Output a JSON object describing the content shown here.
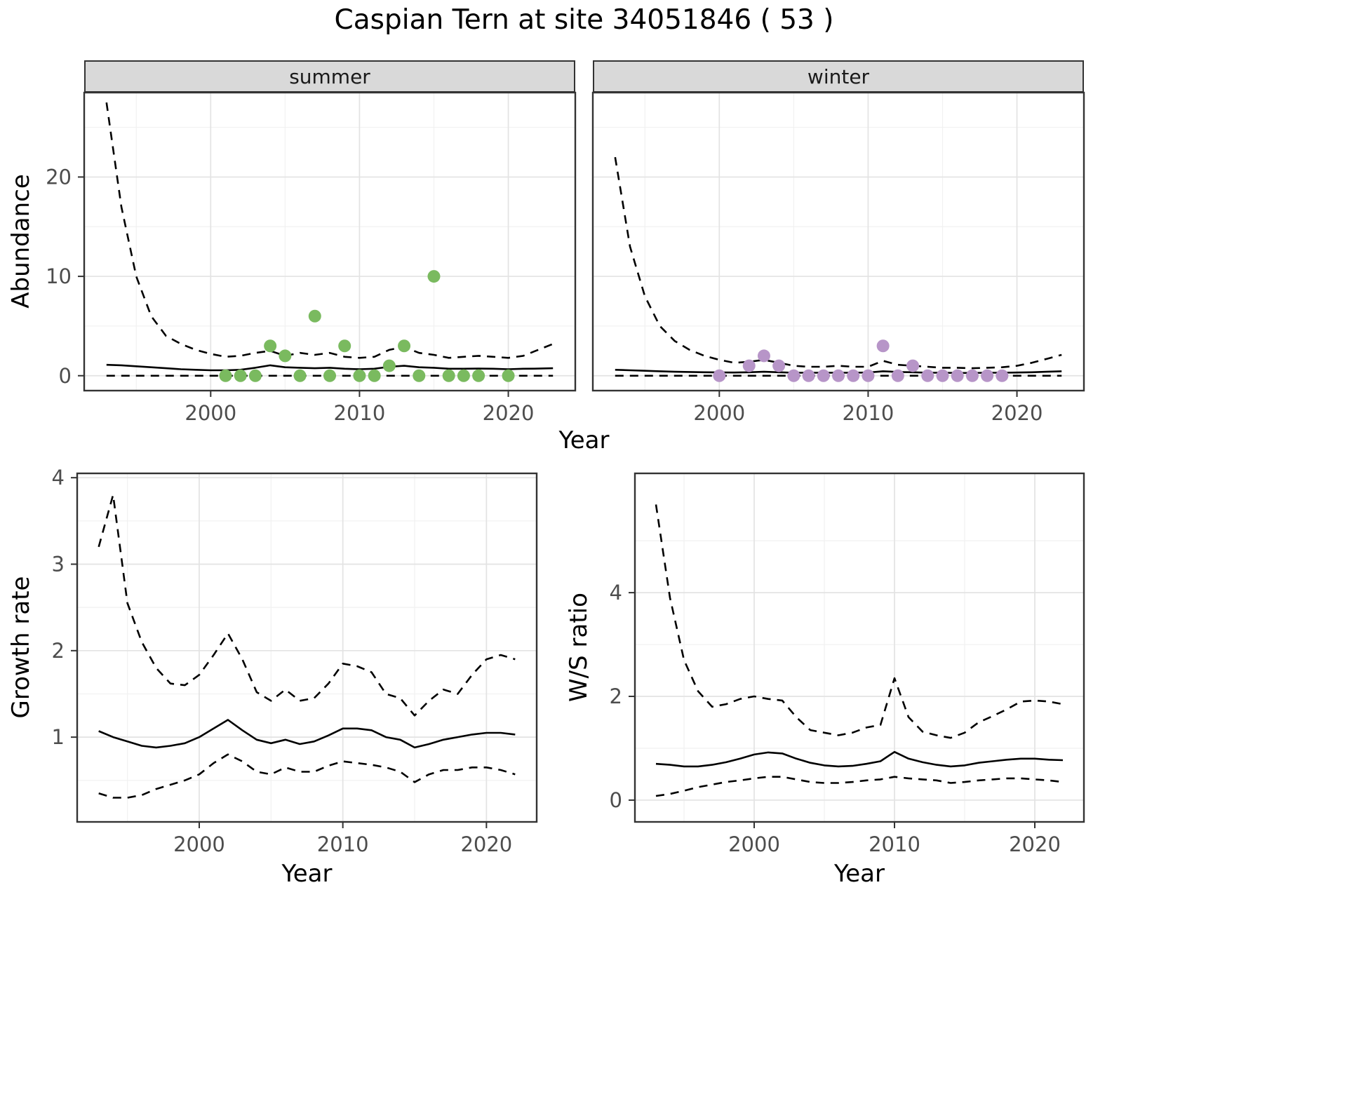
{
  "title": "Caspian Tern at site 34051846 ( 53 )",
  "chart_data": [
    {
      "id": "abundance-summer",
      "type": "line",
      "facet_label": "summer",
      "xlabel": "Year",
      "ylabel": "Abundance",
      "xlim": [
        1991.5,
        2024.5
      ],
      "ylim": [
        -1.5,
        28.5
      ],
      "xticks": [
        2000,
        2010,
        2020
      ],
      "yticks": [
        0,
        10,
        20
      ],
      "x": [
        1993,
        1994,
        1995,
        1996,
        1997,
        1998,
        1999,
        2000,
        2001,
        2002,
        2003,
        2004,
        2005,
        2006,
        2007,
        2008,
        2009,
        2010,
        2011,
        2012,
        2013,
        2014,
        2015,
        2016,
        2017,
        2018,
        2019,
        2020,
        2021,
        2022,
        2023
      ],
      "series": [
        {
          "name": "upper_95ci",
          "style": "dashed",
          "values": [
            27.5,
            17,
            10,
            6,
            4,
            3.2,
            2.6,
            2.2,
            1.9,
            2.0,
            2.3,
            2.5,
            2.0,
            2.3,
            2.1,
            2.3,
            1.9,
            1.8,
            1.9,
            2.6,
            2.9,
            2.3,
            2.1,
            1.8,
            1.9,
            2.0,
            1.9,
            1.8,
            2.0,
            2.6,
            3.2
          ]
        },
        {
          "name": "mean",
          "style": "solid",
          "values": [
            1.1,
            1.05,
            0.95,
            0.85,
            0.75,
            0.65,
            0.6,
            0.55,
            0.55,
            0.6,
            0.8,
            1.05,
            0.85,
            0.8,
            0.75,
            0.8,
            0.7,
            0.65,
            0.7,
            0.9,
            1.0,
            0.85,
            0.8,
            0.7,
            0.7,
            0.72,
            0.7,
            0.65,
            0.7,
            0.72,
            0.75
          ]
        },
        {
          "name": "lower_95ci",
          "style": "dashed",
          "values": [
            0,
            0,
            0,
            0,
            0,
            0,
            0,
            0,
            0,
            0,
            0,
            0,
            0,
            0,
            0,
            0,
            0,
            0,
            0,
            0,
            0,
            0,
            0,
            0,
            0,
            0,
            0,
            0,
            0,
            0,
            0
          ]
        }
      ],
      "points": {
        "name": "observed-counts-summer",
        "color": "#7aba5f",
        "x": [
          2001,
          2002,
          2003,
          2004,
          2005,
          2006,
          2007,
          2008,
          2009,
          2010,
          2011,
          2012,
          2013,
          2014,
          2015,
          2016,
          2017,
          2018,
          2020
        ],
        "y": [
          0,
          0,
          0,
          3,
          2,
          0,
          6,
          0,
          3,
          0,
          0,
          1,
          3,
          0,
          10,
          0,
          0,
          0,
          0
        ]
      }
    },
    {
      "id": "abundance-winter",
      "type": "line",
      "facet_label": "winter",
      "xlabel": "Year",
      "ylabel": "Abundance",
      "xlim": [
        1991.5,
        2024.5
      ],
      "ylim": [
        -1.5,
        28.5
      ],
      "xticks": [
        2000,
        2010,
        2020
      ],
      "yticks": [
        0,
        10,
        20
      ],
      "x": [
        1993,
        1994,
        1995,
        1996,
        1997,
        1998,
        1999,
        2000,
        2001,
        2002,
        2003,
        2004,
        2005,
        2006,
        2007,
        2008,
        2009,
        2010,
        2011,
        2012,
        2013,
        2014,
        2015,
        2016,
        2017,
        2018,
        2019,
        2020,
        2021,
        2022,
        2023
      ],
      "series": [
        {
          "name": "upper_95ci",
          "style": "dashed",
          "values": [
            22,
            13,
            8,
            5,
            3.5,
            2.6,
            2.0,
            1.6,
            1.3,
            1.4,
            1.6,
            1.3,
            1.0,
            0.9,
            0.9,
            1.0,
            0.9,
            0.9,
            1.5,
            1.1,
            1.0,
            0.9,
            0.8,
            0.8,
            0.75,
            0.8,
            0.85,
            1.0,
            1.3,
            1.7,
            2.1
          ]
        },
        {
          "name": "mean",
          "style": "solid",
          "values": [
            0.6,
            0.55,
            0.5,
            0.45,
            0.4,
            0.38,
            0.35,
            0.33,
            0.32,
            0.35,
            0.4,
            0.35,
            0.3,
            0.3,
            0.3,
            0.3,
            0.3,
            0.32,
            0.45,
            0.38,
            0.35,
            0.3,
            0.3,
            0.28,
            0.28,
            0.3,
            0.3,
            0.32,
            0.35,
            0.4,
            0.45
          ]
        },
        {
          "name": "lower_95ci",
          "style": "dashed",
          "values": [
            0,
            0,
            0,
            0,
            0,
            0,
            0,
            0,
            0,
            0,
            0,
            0,
            0,
            0,
            0,
            0,
            0,
            0,
            0,
            0,
            0,
            0,
            0,
            0,
            0,
            0,
            0,
            0,
            0,
            0,
            0
          ]
        }
      ],
      "points": {
        "name": "observed-counts-winter",
        "color": "#b795c8",
        "x": [
          2000,
          2002,
          2003,
          2004,
          2005,
          2006,
          2007,
          2008,
          2009,
          2010,
          2011,
          2012,
          2013,
          2014,
          2015,
          2016,
          2017,
          2018,
          2019
        ],
        "y": [
          0,
          1,
          2,
          1,
          0,
          0,
          0,
          0,
          0,
          0,
          3,
          0,
          1,
          0,
          0,
          0,
          0,
          0,
          0
        ]
      }
    },
    {
      "id": "growth-rate",
      "type": "line",
      "facet_label": "",
      "xlabel": "Year",
      "ylabel": "Growth rate",
      "xlim": [
        1991.5,
        2023.5
      ],
      "ylim": [
        0.02,
        4.05
      ],
      "xticks": [
        2000,
        2010,
        2020
      ],
      "yticks": [
        1,
        2,
        3,
        4
      ],
      "x": [
        1993,
        1994,
        1995,
        1996,
        1997,
        1998,
        1999,
        2000,
        2001,
        2002,
        2003,
        2004,
        2005,
        2006,
        2007,
        2008,
        2009,
        2010,
        2011,
        2012,
        2013,
        2014,
        2015,
        2016,
        2017,
        2018,
        2019,
        2020,
        2021,
        2022
      ],
      "series": [
        {
          "name": "upper_95ci",
          "style": "dashed",
          "values": [
            3.2,
            3.8,
            2.55,
            2.1,
            1.8,
            1.62,
            1.6,
            1.72,
            1.95,
            2.2,
            1.9,
            1.52,
            1.42,
            1.55,
            1.42,
            1.45,
            1.62,
            1.85,
            1.82,
            1.75,
            1.5,
            1.45,
            1.25,
            1.42,
            1.55,
            1.5,
            1.72,
            1.9,
            1.95,
            1.9
          ]
        },
        {
          "name": "mean",
          "style": "solid",
          "values": [
            1.07,
            1.0,
            0.95,
            0.9,
            0.88,
            0.9,
            0.93,
            1.0,
            1.1,
            1.2,
            1.08,
            0.97,
            0.93,
            0.97,
            0.92,
            0.95,
            1.02,
            1.1,
            1.1,
            1.08,
            1.0,
            0.97,
            0.88,
            0.92,
            0.97,
            1.0,
            1.03,
            1.05,
            1.05,
            1.03
          ]
        },
        {
          "name": "lower_95ci",
          "style": "dashed",
          "values": [
            0.35,
            0.3,
            0.3,
            0.33,
            0.4,
            0.45,
            0.5,
            0.57,
            0.7,
            0.8,
            0.72,
            0.6,
            0.57,
            0.65,
            0.6,
            0.6,
            0.67,
            0.72,
            0.7,
            0.68,
            0.65,
            0.6,
            0.48,
            0.57,
            0.62,
            0.62,
            0.65,
            0.65,
            0.62,
            0.57
          ]
        }
      ]
    },
    {
      "id": "ws-ratio",
      "type": "line",
      "facet_label": "",
      "xlabel": "Year",
      "ylabel": "W/S ratio",
      "xlim": [
        1991.5,
        2023.5
      ],
      "ylim": [
        -0.42,
        6.3
      ],
      "xticks": [
        2000,
        2010,
        2020
      ],
      "yticks": [
        0,
        2,
        4
      ],
      "x": [
        1993,
        1994,
        1995,
        1996,
        1997,
        1998,
        1999,
        2000,
        2001,
        2002,
        2003,
        2004,
        2005,
        2006,
        2007,
        2008,
        2009,
        2010,
        2011,
        2012,
        2013,
        2014,
        2015,
        2016,
        2017,
        2018,
        2019,
        2020,
        2021,
        2022
      ],
      "series": [
        {
          "name": "upper_95ci",
          "style": "dashed",
          "values": [
            5.7,
            3.9,
            2.7,
            2.1,
            1.8,
            1.85,
            1.95,
            2.0,
            1.95,
            1.92,
            1.6,
            1.35,
            1.3,
            1.25,
            1.3,
            1.4,
            1.45,
            2.35,
            1.6,
            1.32,
            1.25,
            1.2,
            1.3,
            1.5,
            1.62,
            1.75,
            1.9,
            1.92,
            1.9,
            1.85
          ]
        },
        {
          "name": "mean",
          "style": "solid",
          "values": [
            0.7,
            0.68,
            0.65,
            0.65,
            0.68,
            0.73,
            0.8,
            0.88,
            0.92,
            0.9,
            0.8,
            0.72,
            0.67,
            0.65,
            0.66,
            0.7,
            0.75,
            0.93,
            0.8,
            0.73,
            0.68,
            0.65,
            0.67,
            0.72,
            0.75,
            0.78,
            0.8,
            0.8,
            0.78,
            0.77
          ]
        },
        {
          "name": "lower_95ci",
          "style": "dashed",
          "values": [
            0.08,
            0.12,
            0.18,
            0.25,
            0.3,
            0.35,
            0.38,
            0.42,
            0.45,
            0.45,
            0.4,
            0.35,
            0.33,
            0.33,
            0.35,
            0.38,
            0.4,
            0.45,
            0.42,
            0.4,
            0.38,
            0.33,
            0.35,
            0.38,
            0.4,
            0.42,
            0.42,
            0.4,
            0.38,
            0.35
          ]
        }
      ]
    }
  ],
  "style": {
    "strip_background": "#d9d9d9",
    "panel_border": "#333333",
    "grid_major": "#e3e3e3",
    "grid_minor": "#f1f1f1",
    "tick_label_color": "#4d4d4d",
    "line_color": "#000000"
  }
}
